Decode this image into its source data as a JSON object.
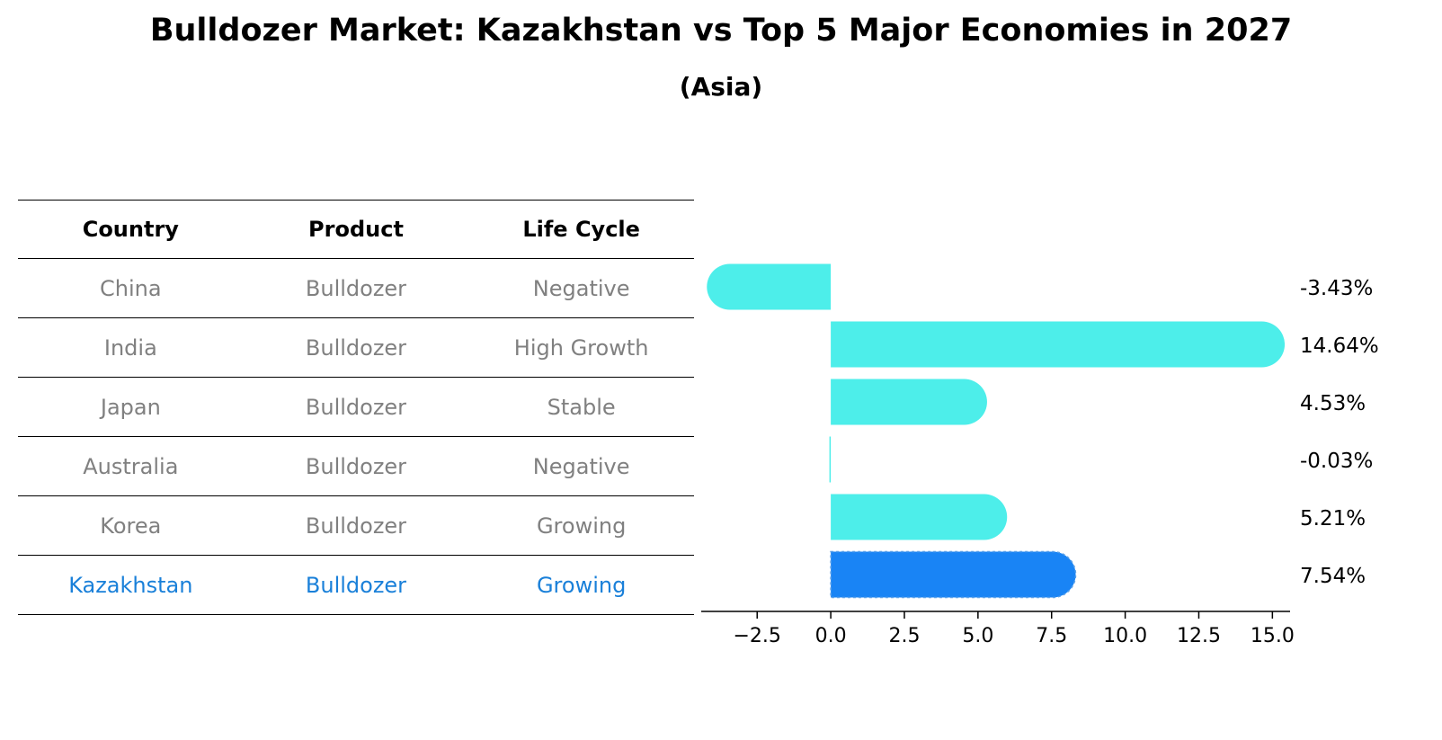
{
  "header": {
    "title": "Bulldozer Market: Kazakhstan vs Top 5 Major Economies in 2027",
    "subtitle": "(Asia)"
  },
  "table": {
    "columns": [
      "Country",
      "Product",
      "Life Cycle"
    ],
    "rows": [
      [
        "China",
        "Bulldozer",
        "Negative"
      ],
      [
        "India",
        "Bulldozer",
        "High Growth"
      ],
      [
        "Japan",
        "Bulldozer",
        "Stable"
      ],
      [
        "Australia",
        "Bulldozer",
        "Negative"
      ],
      [
        "Korea",
        "Bulldozer",
        "Growing"
      ],
      [
        "Kazakhstan",
        "Bulldozer",
        "Growing"
      ]
    ],
    "highlight_row": 5,
    "highlight_color": "#1a80d9",
    "text_color": "#808080"
  },
  "chart_data": {
    "type": "bar",
    "orientation": "horizontal",
    "categories": [
      "China",
      "India",
      "Japan",
      "Australia",
      "Korea",
      "Kazakhstan"
    ],
    "values": [
      -3.43,
      14.64,
      4.53,
      -0.03,
      5.21,
      7.54
    ],
    "value_labels": [
      "-3.43%",
      "14.64%",
      "4.53%",
      "-0.03%",
      "5.21%",
      "7.54%"
    ],
    "xlim": [
      -4.4,
      15.6
    ],
    "xticks": [
      -2.5,
      0.0,
      2.5,
      5.0,
      7.5,
      10.0,
      12.5,
      15.0
    ],
    "xtick_labels": [
      "−2.5",
      "0.0",
      "2.5",
      "5.0",
      "7.5",
      "10.0",
      "12.5",
      "15.0"
    ],
    "colors": {
      "default": "#4deeea",
      "highlight": "#1984f5"
    },
    "highlight_index": 5,
    "grid": false,
    "legend": "none"
  }
}
